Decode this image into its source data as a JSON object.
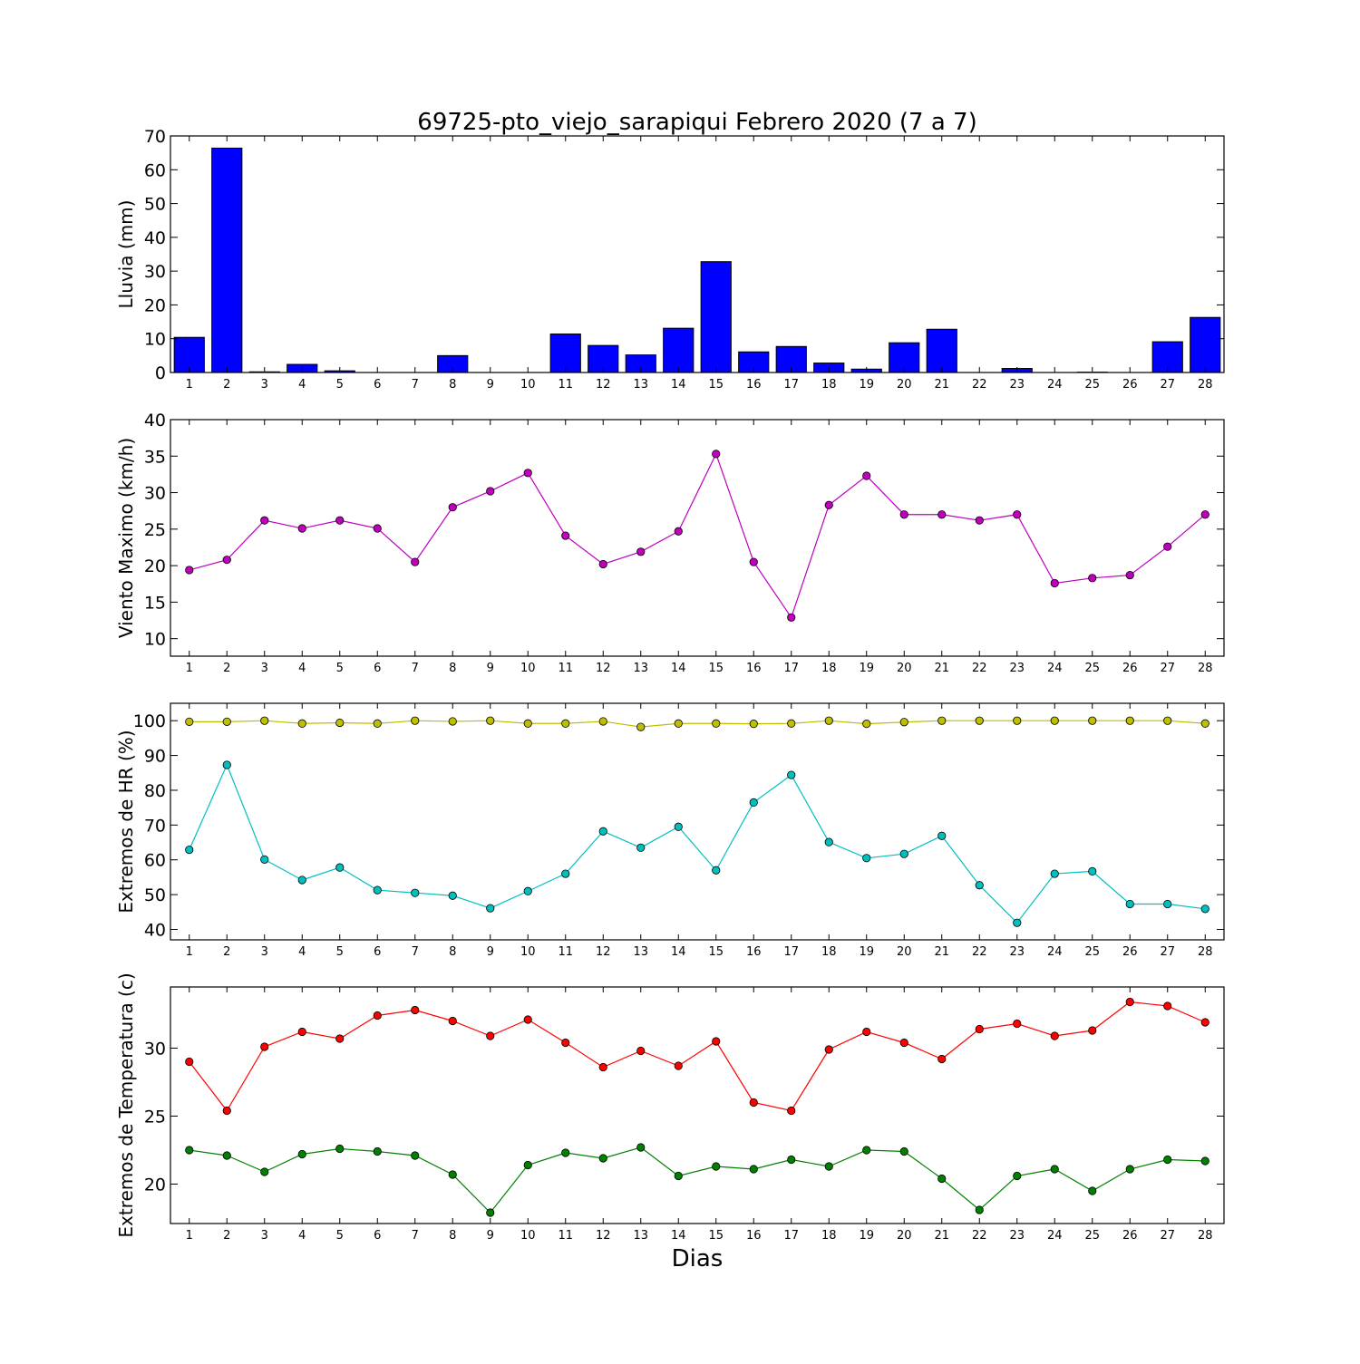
{
  "title": "69725-pto_viejo_sarapiqui Febrero 2020  (7 a 7)",
  "xlabel": "Dias",
  "days": [
    1,
    2,
    3,
    4,
    5,
    6,
    7,
    8,
    9,
    10,
    11,
    12,
    13,
    14,
    15,
    16,
    17,
    18,
    19,
    20,
    21,
    22,
    23,
    24,
    25,
    26,
    27,
    28
  ],
  "chart_data": [
    {
      "type": "bar",
      "ylabel": "Lluvia (mm)",
      "ylim": [
        0,
        70
      ],
      "yticks": [
        0,
        10,
        20,
        30,
        40,
        50,
        60,
        70
      ],
      "x": [
        1,
        2,
        3,
        4,
        5,
        6,
        7,
        8,
        9,
        10,
        11,
        12,
        13,
        14,
        15,
        16,
        17,
        18,
        19,
        20,
        21,
        22,
        23,
        24,
        25,
        26,
        27,
        28
      ],
      "series": [
        {
          "color": "#0000ff",
          "values": [
            10.4,
            66.4,
            0.2,
            2.4,
            0.5,
            0,
            0,
            5.0,
            0,
            0,
            11.4,
            8.0,
            5.2,
            13.1,
            32.8,
            6.1,
            7.7,
            2.8,
            1.0,
            8.8,
            12.8,
            0,
            1.2,
            0,
            0.1,
            0,
            9.1,
            16.3
          ]
        }
      ]
    },
    {
      "type": "line",
      "ylabel": "Viento Maximo (km/h)",
      "ylim": [
        7.6,
        40
      ],
      "yticks": [
        10,
        15,
        20,
        25,
        30,
        35,
        40
      ],
      "x": [
        1,
        2,
        3,
        4,
        5,
        6,
        7,
        8,
        9,
        10,
        11,
        12,
        13,
        14,
        15,
        16,
        17,
        18,
        19,
        20,
        21,
        22,
        23,
        24,
        25,
        26,
        27,
        28
      ],
      "series": [
        {
          "color": "#bf00bf",
          "values": [
            19.4,
            20.8,
            26.2,
            25.1,
            26.2,
            25.1,
            20.5,
            28.0,
            30.2,
            32.7,
            24.1,
            20.2,
            21.9,
            24.7,
            35.3,
            20.5,
            12.9,
            28.3,
            32.3,
            27.0,
            27.0,
            26.2,
            27.0,
            17.6,
            18.3,
            18.7,
            22.6,
            27.0
          ]
        }
      ]
    },
    {
      "type": "line",
      "ylabel": "Extremos de HR (%)",
      "ylim": [
        37,
        105
      ],
      "yticks": [
        40,
        50,
        60,
        70,
        80,
        90,
        100
      ],
      "x": [
        1,
        2,
        3,
        4,
        5,
        6,
        7,
        8,
        9,
        10,
        11,
        12,
        13,
        14,
        15,
        16,
        17,
        18,
        19,
        20,
        21,
        22,
        23,
        24,
        25,
        26,
        27,
        28
      ],
      "series": [
        {
          "color": "#bfbf00",
          "values": [
            99.7,
            99.7,
            100,
            99.2,
            99.4,
            99.2,
            100,
            99.8,
            100,
            99.2,
            99.2,
            99.8,
            98.2,
            99.2,
            99.2,
            99.1,
            99.2,
            100,
            99.1,
            99.6,
            100,
            100,
            100,
            100,
            100,
            100,
            100,
            99.2
          ]
        },
        {
          "color": "#00bfbf",
          "values": [
            62.9,
            87.3,
            60.1,
            54.2,
            57.8,
            51.3,
            50.5,
            49.7,
            46.1,
            51.0,
            56.0,
            68.2,
            63.5,
            69.5,
            57.0,
            76.5,
            84.4,
            65.1,
            60.5,
            61.7,
            66.9,
            52.7,
            41.9,
            56.0,
            56.7,
            47.3,
            47.3,
            45.9
          ]
        }
      ]
    },
    {
      "type": "line",
      "ylabel": "Extremos de Temperatura (c)",
      "ylim": [
        17.1,
        34.5
      ],
      "yticks": [
        20,
        25,
        30
      ],
      "x": [
        1,
        2,
        3,
        4,
        5,
        6,
        7,
        8,
        9,
        10,
        11,
        12,
        13,
        14,
        15,
        16,
        17,
        18,
        19,
        20,
        21,
        22,
        23,
        24,
        25,
        26,
        27,
        28
      ],
      "series": [
        {
          "color": "#ff0000",
          "values": [
            29.0,
            25.4,
            30.1,
            31.2,
            30.7,
            32.4,
            32.8,
            32.0,
            30.9,
            32.1,
            30.4,
            28.6,
            29.8,
            28.7,
            30.5,
            26.0,
            25.4,
            29.9,
            31.2,
            30.4,
            29.2,
            31.4,
            31.8,
            30.9,
            31.3,
            33.4,
            33.1,
            31.9
          ]
        },
        {
          "color": "#008000",
          "values": [
            22.5,
            22.1,
            20.9,
            22.2,
            22.6,
            22.4,
            22.1,
            20.7,
            17.9,
            21.4,
            22.3,
            21.9,
            22.7,
            20.6,
            21.3,
            21.1,
            21.8,
            21.3,
            22.5,
            22.4,
            20.4,
            18.1,
            20.6,
            21.1,
            19.5,
            21.1,
            21.8,
            21.7
          ]
        }
      ]
    }
  ]
}
